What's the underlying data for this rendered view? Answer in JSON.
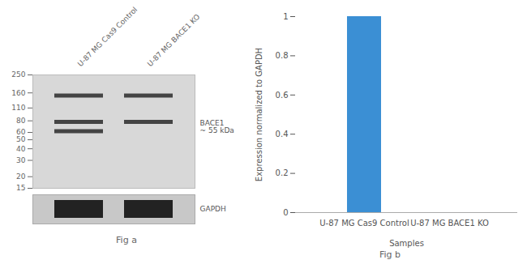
{
  "chart_data": [
    {
      "type": "blot",
      "caption": "Fig a",
      "categories": [
        "U-87 MG Cas9 Control",
        "U-87 MG BACE1 KO"
      ],
      "log": "y",
      "ylim": [
        15,
        250
      ],
      "yticks": [
        250,
        160,
        110,
        80,
        60,
        50,
        40,
        30,
        20,
        15
      ],
      "bands": [
        {
          "category": "U-87 MG Cas9 Control",
          "values": [
            150,
            78,
            62
          ]
        },
        {
          "category": "U-87 MG BACE1 KO",
          "values": [
            150,
            78
          ]
        }
      ],
      "annotations": [
        {
          "text": "BACE1\n~ 55 kDa",
          "values": [
            78,
            62
          ]
        }
      ],
      "loading_control": "GAPDH"
    },
    {
      "type": "bar",
      "caption": "Fig b",
      "categories": [
        "U-87 MG Cas9 Control",
        "U-87 MG BACE1 KO"
      ],
      "values": [
        1.0,
        0.0
      ],
      "color": "#3b8fd4",
      "xlabel": "Samples",
      "ylabel": "Expression normalized to GAPDH",
      "ylim": [
        0,
        1.0
      ],
      "yticks": [
        0,
        0.2,
        0.4,
        0.6,
        0.8,
        1.0
      ],
      "grid": false
    }
  ]
}
